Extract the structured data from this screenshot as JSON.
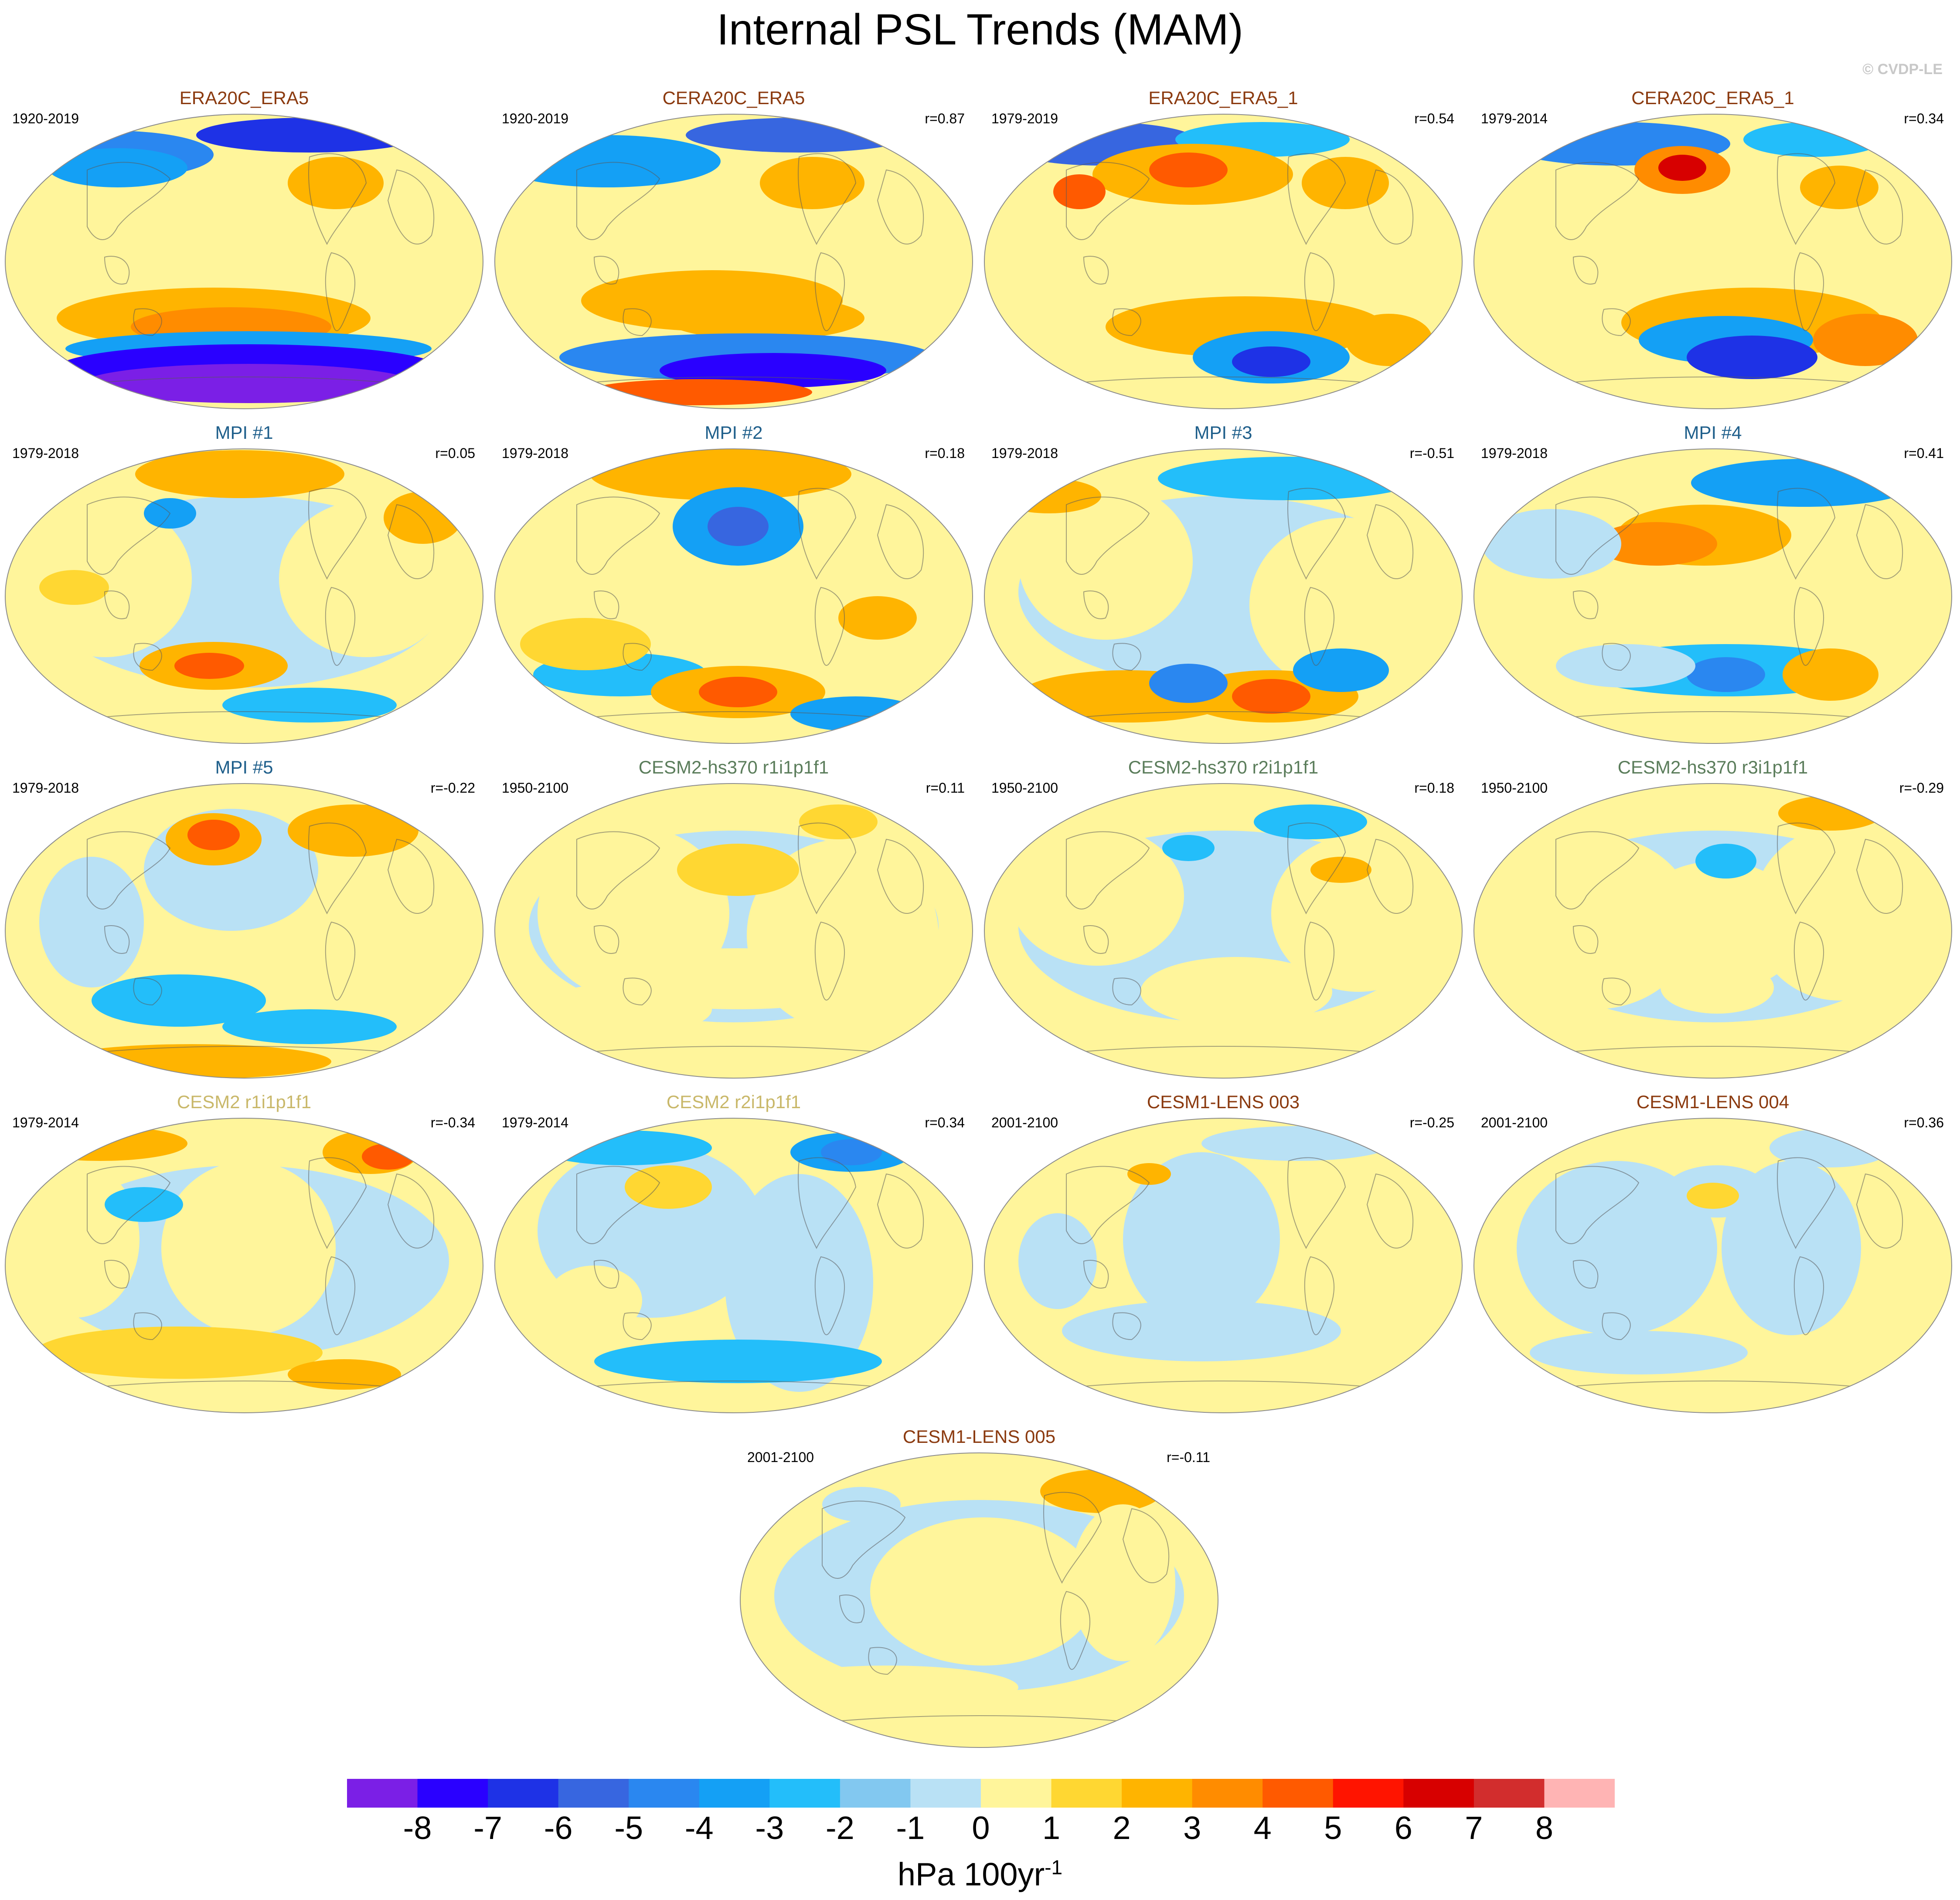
{
  "title": "Internal PSL Trends (MAM)",
  "credit": "© CVDP-LE",
  "colorbar": {
    "colors": [
      "#7b1fe6",
      "#2a00ff",
      "#1e32e6",
      "#3766e0",
      "#2a87f0",
      "#14a0f5",
      "#23befa",
      "#82c8f0",
      "#b9e1f5",
      "#fff59b",
      "#ffd732",
      "#ffb400",
      "#ff8c00",
      "#ff5a00",
      "#ff1400",
      "#d70000",
      "#d22d2d",
      "#ffb4b4"
    ],
    "ticks": [
      "-8",
      "-7",
      "-6",
      "-5",
      "-4",
      "-3",
      "-2",
      "-1",
      "0",
      "1",
      "2",
      "3",
      "4",
      "5",
      "6",
      "7",
      "8"
    ],
    "units_base": "hPa 100yr",
    "units_exp": "-1"
  },
  "panels": [
    {
      "title": "ERA20C_ERA5",
      "period": "1920-2019",
      "corr": "",
      "title_color": "#8b3a0f",
      "style": "era20c"
    },
    {
      "title": "CERA20C_ERA5",
      "period": "1920-2019",
      "corr": "r=0.87",
      "title_color": "#8b3a0f",
      "style": "cera20c"
    },
    {
      "title": "ERA20C_ERA5_1",
      "period": "1979-2019",
      "corr": "r=0.54",
      "title_color": "#8b3a0f",
      "style": "era5a"
    },
    {
      "title": "CERA20C_ERA5_1",
      "period": "1979-2014",
      "corr": "r=0.34",
      "title_color": "#8b3a0f",
      "style": "era5b"
    },
    {
      "title": "MPI #1",
      "period": "1979-2018",
      "corr": "r=0.05",
      "title_color": "#1f5f8b",
      "style": "mpi1"
    },
    {
      "title": "MPI #2",
      "period": "1979-2018",
      "corr": "r=0.18",
      "title_color": "#1f5f8b",
      "style": "mpi2"
    },
    {
      "title": "MPI #3",
      "period": "1979-2018",
      "corr": "r=-0.51",
      "title_color": "#1f5f8b",
      "style": "mpi3"
    },
    {
      "title": "MPI #4",
      "period": "1979-2018",
      "corr": "r=0.41",
      "title_color": "#1f5f8b",
      "style": "mpi4"
    },
    {
      "title": "MPI #5",
      "period": "1979-2018",
      "corr": "r=-0.22",
      "title_color": "#1f5f8b",
      "style": "mpi5"
    },
    {
      "title": "CESM2-hs370 r1i1p1f1",
      "period": "1950-2100",
      "corr": "r=0.11",
      "title_color": "#5b7d5b",
      "style": "hs1"
    },
    {
      "title": "CESM2-hs370 r2i1p1f1",
      "period": "1950-2100",
      "corr": "r=0.18",
      "title_color": "#5b7d5b",
      "style": "hs2"
    },
    {
      "title": "CESM2-hs370 r3i1p1f1",
      "period": "1950-2100",
      "corr": "r=-0.29",
      "title_color": "#5b7d5b",
      "style": "hs3"
    },
    {
      "title": "CESM2 r1i1p1f1",
      "period": "1979-2014",
      "corr": "r=-0.34",
      "title_color": "#c9b86a",
      "style": "c2a"
    },
    {
      "title": "CESM2 r2i1p1f1",
      "period": "1979-2014",
      "corr": "r=0.34",
      "title_color": "#c9b86a",
      "style": "c2b"
    },
    {
      "title": "CESM1-LENS 003",
      "period": "2001-2100",
      "corr": "r=-0.25",
      "title_color": "#8b3a0f",
      "style": "l3"
    },
    {
      "title": "CESM1-LENS 004",
      "period": "2001-2100",
      "corr": "r=0.36",
      "title_color": "#8b3a0f",
      "style": "l4"
    },
    {
      "title": "CESM1-LENS 005",
      "period": "2001-2100",
      "corr": "r=-0.11",
      "title_color": "#8b3a0f",
      "style": "l5"
    }
  ]
}
